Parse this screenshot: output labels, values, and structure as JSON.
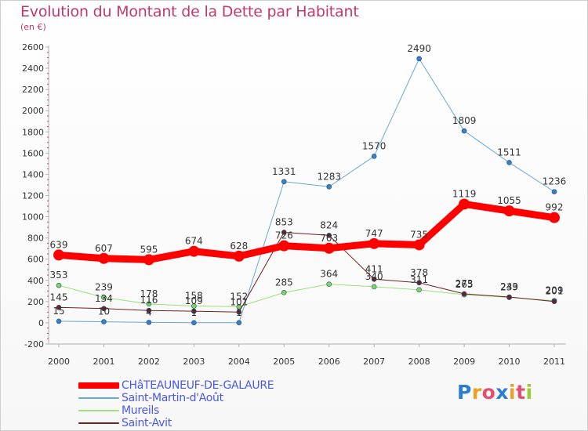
{
  "header": {
    "title": "Evolution du Montant de la Dette par Habitant",
    "subtitle": "(en €)"
  },
  "colors": {
    "title": "#c0396c",
    "axis": "#b0b0b0",
    "tick_label": "#333333",
    "point_label": "#333333",
    "legend_text": "#4a59e8"
  },
  "logo": {
    "letters": [
      "P",
      "r",
      "o",
      "x",
      "i",
      "t",
      "i"
    ],
    "colors": [
      "#2a7fd4",
      "#f0a020",
      "#e05070",
      "#2a7fd4",
      "#f0a020",
      "#e05070",
      "#9acd32"
    ]
  },
  "chart_data": {
    "type": "line",
    "title": "Evolution du Montant de la Dette par Habitant",
    "subtitle": "(en €)",
    "xlabel": "",
    "ylabel": "",
    "x": [
      "2000",
      "2001",
      "2002",
      "2003",
      "2004",
      "2005",
      "2006",
      "2007",
      "2008",
      "2009",
      "2010",
      "2011"
    ],
    "ylim": [
      -200,
      2600
    ],
    "yticks": [
      -200,
      0,
      200,
      400,
      600,
      800,
      1000,
      1200,
      1400,
      1600,
      1800,
      2000,
      2200,
      2400,
      2600
    ],
    "grid": false,
    "legend_position": "bottom-left",
    "series": [
      {
        "name": "Saint-Martin-d'Août",
        "color": "#6aa8d8",
        "point_color": "#3a7fc4",
        "width": 1,
        "values": [
          15,
          10,
          4,
          1,
          1,
          1331,
          1283,
          1570,
          2490,
          1809,
          1511,
          1236
        ],
        "labels": [
          "15",
          "10",
          "4",
          "1",
          "1",
          "1331",
          "1283",
          "1570",
          "2490",
          "1809",
          "1511",
          "1236"
        ]
      },
      {
        "name": "Mureils",
        "color": "#9ee07e",
        "point_color": "#82d45c",
        "width": 1,
        "values": [
          353,
          239,
          178,
          158,
          152,
          285,
          364,
          340,
          311,
          265,
          239,
          209
        ],
        "labels": [
          "353",
          "239",
          "178",
          "158",
          "152",
          "285",
          "364",
          "340",
          "311",
          "265",
          "239",
          "209"
        ]
      },
      {
        "name": "Saint-Avit",
        "color": "#6b2424",
        "point_color": "#6b2424",
        "width": 1,
        "values": [
          145,
          134,
          116,
          109,
          101,
          853,
          824,
          411,
          378,
          273,
          243,
          201
        ],
        "labels": [
          "145",
          "134",
          "116",
          "109",
          "101",
          "853",
          "824",
          "411",
          "378",
          "273",
          "243",
          "201"
        ]
      },
      {
        "name": "CHâTEAUNEUF-DE-GALAURE",
        "color": "#ff0000",
        "point_color": "#ff0000",
        "width": 9,
        "values": [
          639,
          607,
          595,
          674,
          628,
          726,
          703,
          747,
          735,
          1119,
          1055,
          992
        ],
        "labels": [
          "639",
          "607",
          "595",
          "674",
          "628",
          "726",
          "703",
          "747",
          "735",
          "1119",
          "1055",
          "992"
        ]
      }
    ],
    "legend": [
      "CHâTEAUNEUF-DE-GALAURE",
      "Saint-Martin-d'Août",
      "Mureils",
      "Saint-Avit"
    ]
  }
}
